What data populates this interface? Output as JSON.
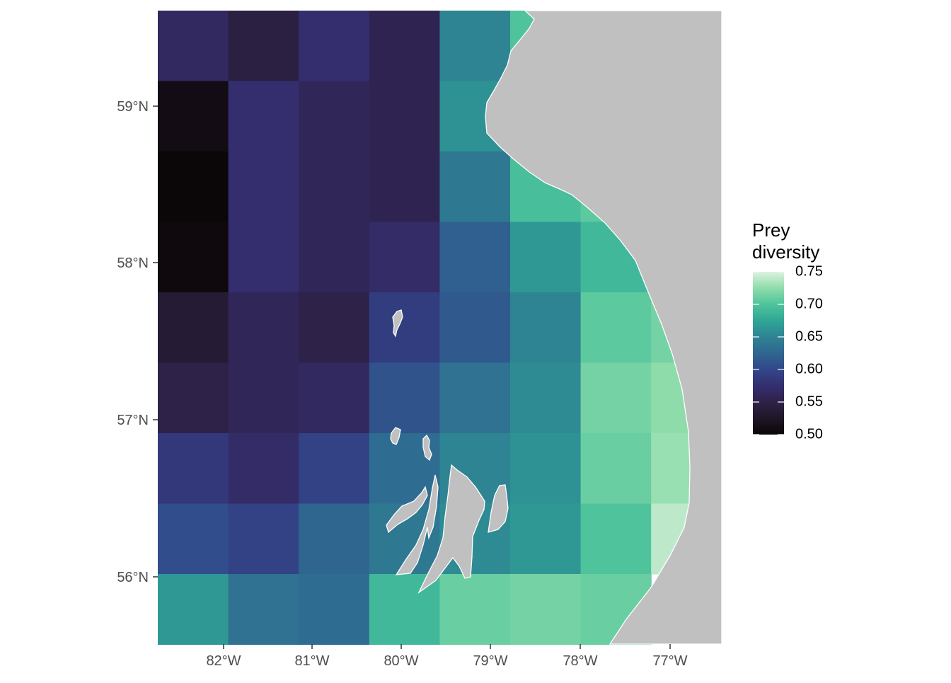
{
  "legend": {
    "title_line1": "Prey",
    "title_line2": "diversity",
    "ticks": [
      "0.75",
      "0.70",
      "0.65",
      "0.60",
      "0.55",
      "0.50"
    ],
    "tick_values": [
      0.75,
      0.7,
      0.65,
      0.6,
      0.55,
      0.5
    ]
  },
  "axes": {
    "x_ticks": [
      "82°W",
      "81°W",
      "80°W",
      "79°W",
      "78°W",
      "77°W"
    ],
    "y_ticks": [
      "59°N",
      "58°N",
      "57°N",
      "56°N"
    ]
  },
  "colors": {
    "land": "#c0c0c0",
    "coast": "#ffffff"
  },
  "grid": {
    "rows": [
      [
        0.565,
        0.545,
        0.575,
        0.555,
        0.65,
        0.7
      ],
      [
        0.51,
        0.575,
        0.56,
        0.555,
        0.66,
        null
      ],
      [
        0.5,
        0.575,
        0.56,
        0.555,
        0.64,
        0.695
      ],
      [
        0.505,
        0.575,
        0.56,
        0.57,
        0.62,
        0.665
      ],
      [
        0.535,
        0.56,
        0.55,
        0.59,
        0.615,
        0.65
      ],
      [
        0.55,
        0.56,
        0.565,
        0.61,
        0.635,
        0.655
      ],
      [
        0.585,
        0.57,
        0.595,
        0.63,
        0.65,
        0.66
      ],
      [
        0.605,
        0.595,
        0.625,
        0.64,
        0.655,
        0.665
      ],
      [
        0.665,
        0.635,
        0.63,
        0.69,
        0.71,
        0.715
      ]
    ],
    "row7_col6": 0.705,
    "extra": {
      "r2c6": 0.705,
      "r3c6": 0.69,
      "r4c6": 0.705,
      "r5c6": 0.715,
      "r6c6": 0.71,
      "r7c6": 0.7,
      "r8c6": 0.71,
      "r4c7": 0.715,
      "r5c7": 0.725,
      "r6c7": 0.728,
      "r7c7": 0.74
    }
  }
}
